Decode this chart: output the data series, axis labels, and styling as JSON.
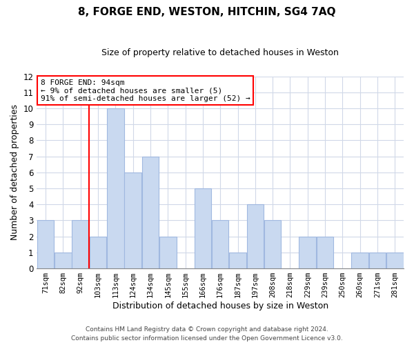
{
  "title": "8, FORGE END, WESTON, HITCHIN, SG4 7AQ",
  "subtitle": "Size of property relative to detached houses in Weston",
  "xlabel": "Distribution of detached houses by size in Weston",
  "ylabel": "Number of detached properties",
  "footnote1": "Contains HM Land Registry data © Crown copyright and database right 2024.",
  "footnote2": "Contains public sector information licensed under the Open Government Licence v3.0.",
  "bin_labels": [
    "71sqm",
    "82sqm",
    "92sqm",
    "103sqm",
    "113sqm",
    "124sqm",
    "134sqm",
    "145sqm",
    "155sqm",
    "166sqm",
    "176sqm",
    "187sqm",
    "197sqm",
    "208sqm",
    "218sqm",
    "229sqm",
    "239sqm",
    "250sqm",
    "260sqm",
    "271sqm",
    "281sqm"
  ],
  "bar_heights": [
    3,
    1,
    3,
    2,
    10,
    6,
    7,
    2,
    0,
    5,
    3,
    1,
    4,
    3,
    0,
    2,
    2,
    0,
    1,
    1,
    1
  ],
  "bar_color": "#c9d9f0",
  "bar_edge_color": "#a0b8e0",
  "highlight_box_text_line1": "8 FORGE END: 94sqm",
  "highlight_box_text_line2": "← 9% of detached houses are smaller (5)",
  "highlight_box_text_line3": "91% of semi-detached houses are larger (52) →",
  "highlight_box_color": "white",
  "highlight_box_edge_color": "red",
  "highlight_line_color": "red",
  "ylim": [
    0,
    12
  ],
  "yticks": [
    0,
    1,
    2,
    3,
    4,
    5,
    6,
    7,
    8,
    9,
    10,
    11,
    12
  ],
  "grid_color": "#d0d8e8",
  "background_color": "white"
}
